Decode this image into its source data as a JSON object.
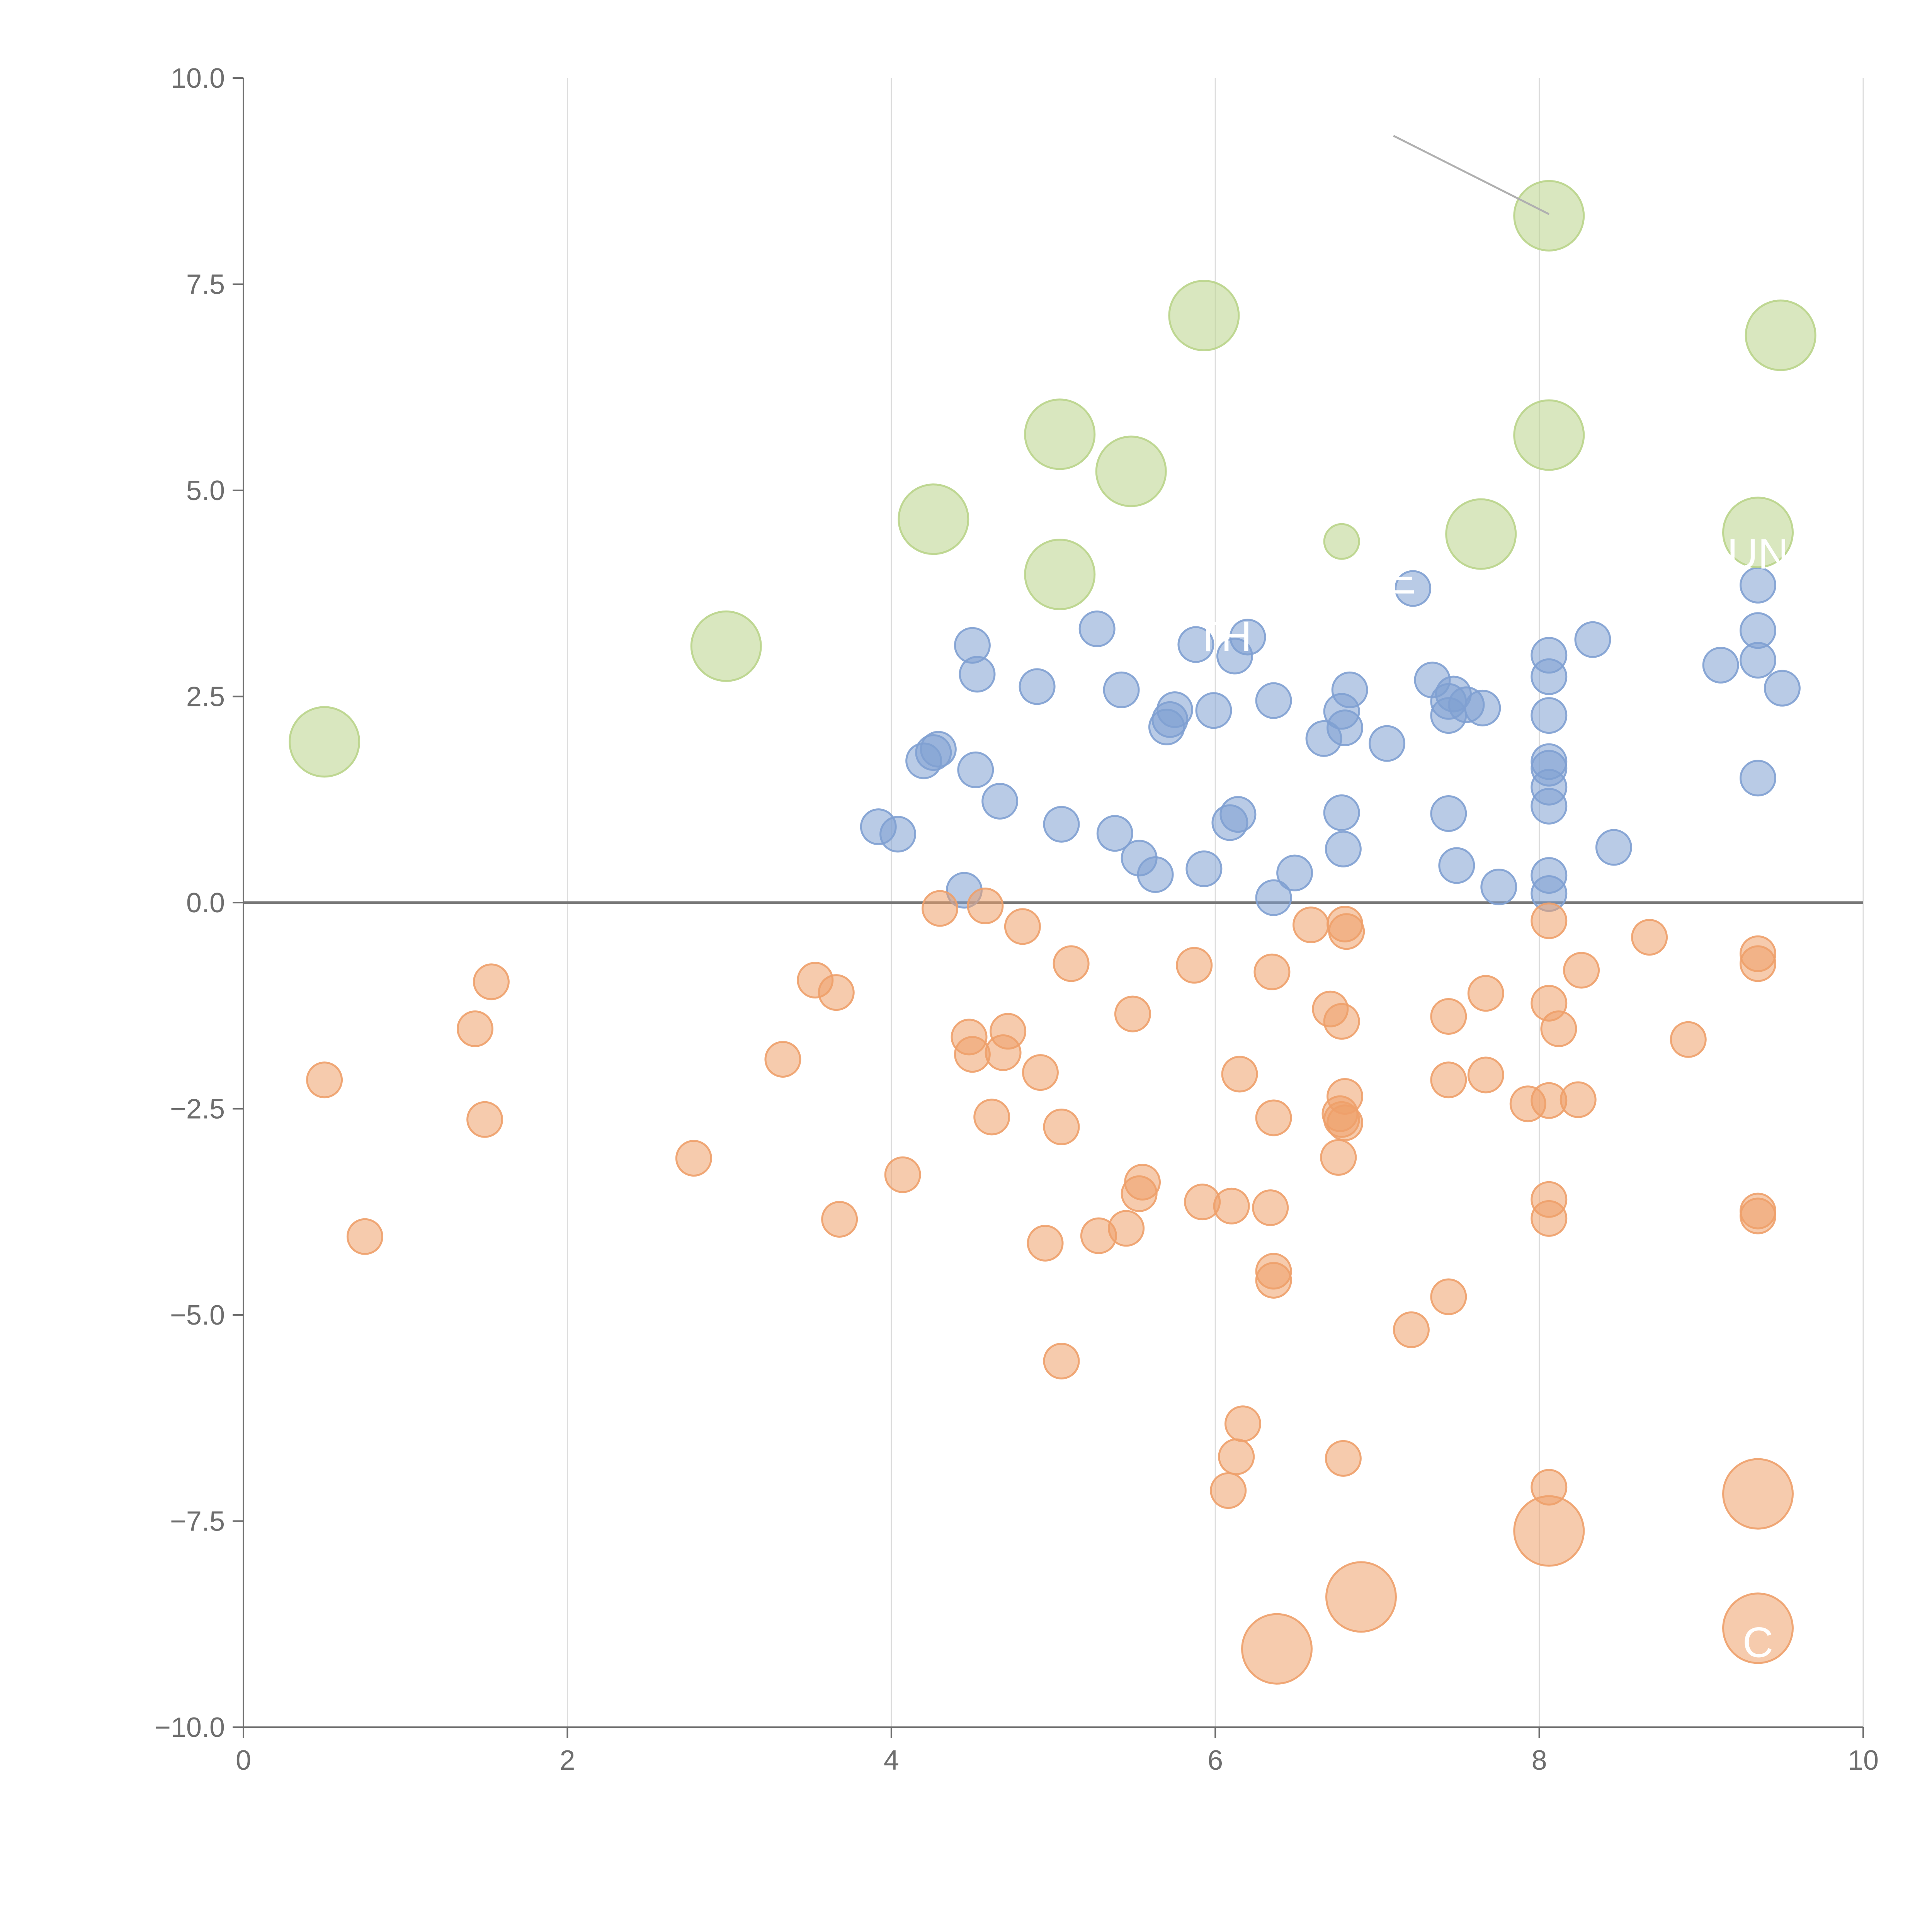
{
  "chart_data": {
    "type": "scatter",
    "title": "",
    "xlabel": "",
    "ylabel": "",
    "xlim": [
      0,
      10
    ],
    "ylim": [
      -10,
      10
    ],
    "grid": "vertical",
    "x_ticks": [
      0,
      2,
      4,
      6,
      8,
      10
    ],
    "x_tick_labels": [
      "0",
      "2",
      "4",
      "6",
      "8",
      "10"
    ],
    "y_ticks": [
      -10,
      -7.5,
      -5,
      -2.5,
      0,
      2.5,
      5,
      7.5,
      10
    ],
    "y_tick_labels": [
      "−10.0",
      "−7.5",
      "−5.0",
      "−2.5",
      "0.0",
      "2.5",
      "5.0",
      "7.5",
      "10.0"
    ],
    "reference_line_y": 0,
    "colors": {
      "blue": "#7fa0d2",
      "orange": "#eea06a",
      "green": "#b9d48a",
      "axis": "#6e6e6e",
      "grid": "#dcdcdc",
      "reference": "#777777"
    },
    "series": [
      {
        "name": "blue",
        "size": 1.0,
        "points": [
          [
            3.92,
            0.92
          ],
          [
            4.04,
            0.83
          ],
          [
            4.45,
            0.15
          ],
          [
            4.2,
            1.72
          ],
          [
            4.26,
            1.82
          ],
          [
            4.29,
            1.86
          ],
          [
            4.52,
            1.61
          ],
          [
            4.67,
            1.23
          ],
          [
            4.5,
            3.12
          ],
          [
            4.53,
            2.77
          ],
          [
            4.9,
            2.62
          ],
          [
            5.05,
            0.95
          ],
          [
            5.27,
            3.32
          ],
          [
            5.38,
            0.84
          ],
          [
            5.42,
            2.58
          ],
          [
            5.53,
            0.54
          ],
          [
            5.63,
            0.34
          ],
          [
            5.7,
            2.13
          ],
          [
            5.72,
            2.22
          ],
          [
            5.75,
            2.34
          ],
          [
            5.88,
            3.13
          ],
          [
            5.93,
            0.41
          ],
          [
            5.99,
            2.33
          ],
          [
            6.09,
            0.97
          ],
          [
            6.14,
            1.07
          ],
          [
            6.2,
            3.22
          ],
          [
            6.12,
            2.99
          ],
          [
            6.36,
            2.45
          ],
          [
            6.36,
            0.06
          ],
          [
            6.49,
            0.36
          ],
          [
            6.67,
            1.99
          ],
          [
            6.78,
            2.32
          ],
          [
            6.8,
            2.12
          ],
          [
            6.83,
            2.58
          ],
          [
            6.78,
            1.09
          ],
          [
            6.79,
            0.65
          ],
          [
            7.06,
            1.93
          ],
          [
            7.22,
            3.81
          ],
          [
            7.34,
            2.7
          ],
          [
            7.44,
            2.27
          ],
          [
            7.47,
            2.53
          ],
          [
            7.44,
            2.44
          ],
          [
            7.55,
            2.4
          ],
          [
            7.65,
            2.36
          ],
          [
            7.44,
            1.08
          ],
          [
            7.49,
            0.45
          ],
          [
            7.75,
            0.19
          ],
          [
            8.06,
            3.0
          ],
          [
            8.06,
            2.74
          ],
          [
            8.06,
            2.27
          ],
          [
            8.06,
            1.71
          ],
          [
            8.06,
            1.63
          ],
          [
            8.06,
            1.4
          ],
          [
            8.06,
            1.17
          ],
          [
            8.06,
            0.33
          ],
          [
            8.06,
            0.11
          ],
          [
            8.33,
            3.19
          ],
          [
            8.46,
            0.67
          ],
          [
            9.12,
            2.88
          ],
          [
            9.35,
            3.85
          ],
          [
            9.35,
            3.3
          ],
          [
            9.35,
            2.94
          ],
          [
            9.5,
            2.6
          ],
          [
            9.35,
            1.51
          ]
        ]
      },
      {
        "name": "orange",
        "size": 1.0,
        "points": [
          [
            0.5,
            -2.15
          ],
          [
            0.75,
            -4.05
          ],
          [
            1.43,
            -1.53
          ],
          [
            1.49,
            -2.63
          ],
          [
            1.53,
            -0.96
          ],
          [
            2.78,
            -3.1
          ],
          [
            3.33,
            -1.9
          ],
          [
            3.53,
            -0.94
          ],
          [
            3.66,
            -1.09
          ],
          [
            3.68,
            -3.84
          ],
          [
            4.07,
            -3.3
          ],
          [
            4.3,
            -0.07
          ],
          [
            4.58,
            -0.04
          ],
          [
            4.48,
            -1.63
          ],
          [
            4.5,
            -1.84
          ],
          [
            4.62,
            -2.6
          ],
          [
            4.72,
            -1.56
          ],
          [
            4.69,
            -1.82
          ],
          [
            4.81,
            -0.29
          ],
          [
            4.92,
            -2.06
          ],
          [
            4.95,
            -4.13
          ],
          [
            5.05,
            -2.72
          ],
          [
            5.05,
            -5.56
          ],
          [
            5.11,
            -0.74
          ],
          [
            5.28,
            -4.04
          ],
          [
            5.45,
            -3.95
          ],
          [
            5.49,
            -1.35
          ],
          [
            5.53,
            -3.53
          ],
          [
            5.55,
            -3.39
          ],
          [
            5.87,
            -0.76
          ],
          [
            5.92,
            -3.63
          ],
          [
            6.1,
            -3.68
          ],
          [
            6.15,
            -2.08
          ],
          [
            6.17,
            -6.32
          ],
          [
            6.13,
            -6.72
          ],
          [
            6.08,
            -7.13
          ],
          [
            6.35,
            -0.84
          ],
          [
            6.34,
            -3.7
          ],
          [
            6.36,
            -2.61
          ],
          [
            6.36,
            -4.47
          ],
          [
            6.36,
            -4.58
          ],
          [
            6.59,
            -0.27
          ],
          [
            6.71,
            -1.29
          ],
          [
            6.78,
            -1.44
          ],
          [
            6.8,
            -0.26
          ],
          [
            6.81,
            -0.35
          ],
          [
            6.78,
            -2.63
          ],
          [
            6.8,
            -2.67
          ],
          [
            6.77,
            -2.56
          ],
          [
            6.8,
            -2.35
          ],
          [
            6.76,
            -3.09
          ],
          [
            6.79,
            -6.74
          ],
          [
            7.21,
            -5.18
          ],
          [
            7.44,
            -1.38
          ],
          [
            7.44,
            -2.15
          ],
          [
            7.44,
            -4.78
          ],
          [
            7.67,
            -1.1
          ],
          [
            7.67,
            -2.09
          ],
          [
            7.93,
            -2.44
          ],
          [
            8.06,
            -0.22
          ],
          [
            8.06,
            -1.22
          ],
          [
            8.12,
            -1.53
          ],
          [
            8.06,
            -2.4
          ],
          [
            8.26,
            -0.82
          ],
          [
            8.24,
            -2.39
          ],
          [
            8.06,
            -3.6
          ],
          [
            8.06,
            -3.83
          ],
          [
            8.06,
            -7.09
          ],
          [
            8.68,
            -0.42
          ],
          [
            8.92,
            -1.66
          ],
          [
            9.35,
            -0.62
          ],
          [
            9.35,
            -0.74
          ],
          [
            9.35,
            -3.74
          ],
          [
            9.35,
            -3.8
          ]
        ]
      },
      {
        "name": "orange-large",
        "size": 2.0,
        "points": [
          [
            6.38,
            -9.05
          ],
          [
            6.9,
            -8.42
          ],
          [
            8.06,
            -7.62
          ],
          [
            9.35,
            -7.17
          ],
          [
            9.35,
            -8.8
          ]
        ]
      },
      {
        "name": "green",
        "size": 2.0,
        "points": [
          [
            0.5,
            1.95
          ],
          [
            2.98,
            3.11
          ],
          [
            4.26,
            4.65
          ],
          [
            5.04,
            5.68
          ],
          [
            5.04,
            3.98
          ],
          [
            5.48,
            5.23
          ],
          [
            5.93,
            7.12
          ],
          [
            7.64,
            4.47
          ],
          [
            8.06,
            8.33
          ],
          [
            8.06,
            5.67
          ],
          [
            9.35,
            4.49
          ],
          [
            9.49,
            6.88
          ]
        ]
      },
      {
        "name": "green-small",
        "size": 1.0,
        "points": [
          [
            6.78,
            4.38
          ]
        ]
      }
    ],
    "annotations": [
      {
        "text": "UN",
        "x": 9.35,
        "y": 4.05
      },
      {
        "text": "E",
        "x": 7.15,
        "y": 3.75
      },
      {
        "text": "TH",
        "x": 6.05,
        "y": 3.05
      },
      {
        "text": "C",
        "x": 9.35,
        "y": -9.15
      }
    ],
    "callout_line": {
      "from": [
        7.1,
        9.3
      ],
      "to": [
        8.06,
        8.35
      ]
    }
  }
}
